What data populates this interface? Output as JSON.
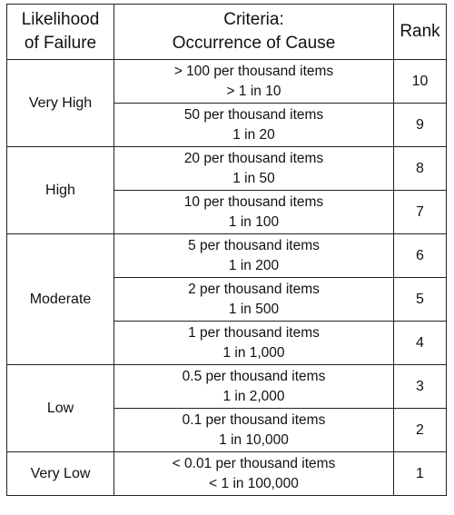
{
  "header": {
    "likelihood_line1": "Likelihood",
    "likelihood_line2": "of Failure",
    "criteria_line1": "Criteria:",
    "criteria_line2": "Occurrence of Cause",
    "rank": "Rank"
  },
  "groups": [
    {
      "likelihood": "Very High",
      "rows": [
        {
          "line1": "> 100 per thousand items",
          "line2": "> 1 in 10",
          "rank": "10"
        },
        {
          "line1": "50 per thousand items",
          "line2": "1 in 20",
          "rank": "9"
        }
      ]
    },
    {
      "likelihood": "High",
      "rows": [
        {
          "line1": "20 per thousand items",
          "line2": "1 in 50",
          "rank": "8"
        },
        {
          "line1": "10 per thousand items",
          "line2": "1 in 100",
          "rank": "7"
        }
      ]
    },
    {
      "likelihood": "Moderate",
      "rows": [
        {
          "line1": "5 per thousand items",
          "line2": "1 in 200",
          "rank": "6"
        },
        {
          "line1": "2 per thousand items",
          "line2": "1 in 500",
          "rank": "5"
        },
        {
          "line1": "1 per thousand items",
          "line2": "1 in 1,000",
          "rank": "4"
        }
      ]
    },
    {
      "likelihood": "Low",
      "rows": [
        {
          "line1": "0.5 per thousand items",
          "line2": "1 in 2,000",
          "rank": "3"
        },
        {
          "line1": "0.1 per thousand items",
          "line2": "1 in 10,000",
          "rank": "2"
        }
      ]
    },
    {
      "likelihood": "Very Low",
      "rows": [
        {
          "line1": "< 0.01 per thousand items",
          "line2": "< 1 in 100,000",
          "rank": "1"
        }
      ]
    }
  ]
}
